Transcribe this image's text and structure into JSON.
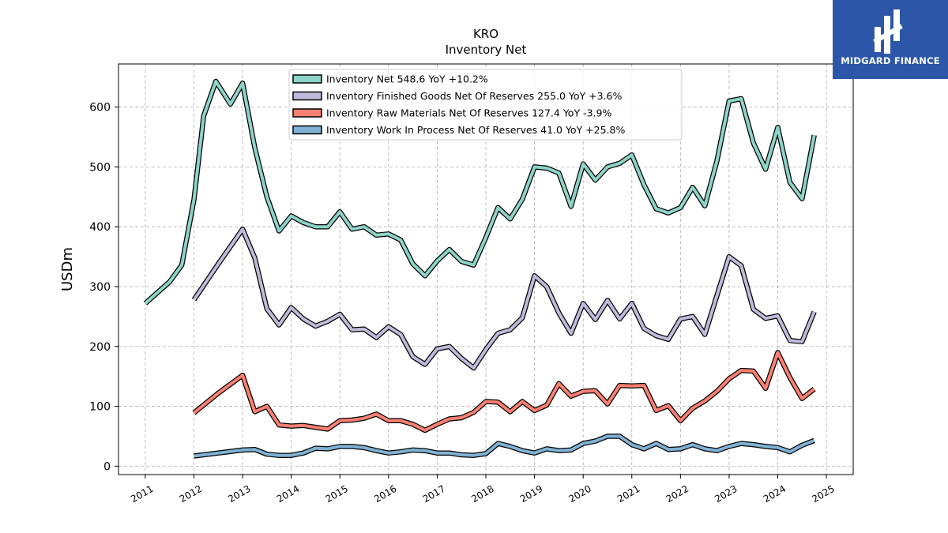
{
  "brand": {
    "name": "MIDGARD FINANCE",
    "logo_icon": "midgard-logo-icon",
    "background": "#2c57a8"
  },
  "chart_data": {
    "type": "line",
    "title": "KRO",
    "subtitle": "Inventory Net",
    "xlabel": "",
    "ylabel": "USDm",
    "xlim": [
      2010.45,
      2025.55
    ],
    "ylim": [
      -14,
      672
    ],
    "grid": true,
    "legend_position": "top-center",
    "x_ticks": [
      "2011",
      "2012",
      "2013",
      "2014",
      "2015",
      "2016",
      "2017",
      "2018",
      "2019",
      "2020",
      "2021",
      "2022",
      "2023",
      "2024",
      "2025"
    ],
    "y_ticks": [
      "0",
      "100",
      "200",
      "300",
      "400",
      "500",
      "600"
    ],
    "series": [
      {
        "name": "Inventory Net",
        "legend_label": "Inventory Net  548.6 YoY +10.2%",
        "color": "#8dd3c7",
        "points": [
          [
            2011.0,
            272
          ],
          [
            2011.5,
            308
          ],
          [
            2011.75,
            336
          ],
          [
            2012.0,
            445
          ],
          [
            2012.2,
            585
          ],
          [
            2012.45,
            643
          ],
          [
            2012.75,
            605
          ],
          [
            2013.0,
            640
          ],
          [
            2013.25,
            532
          ],
          [
            2013.5,
            450
          ],
          [
            2013.75,
            393
          ],
          [
            2014.0,
            418
          ],
          [
            2014.25,
            407
          ],
          [
            2014.5,
            400
          ],
          [
            2014.75,
            400
          ],
          [
            2015.0,
            425
          ],
          [
            2015.25,
            396
          ],
          [
            2015.5,
            400
          ],
          [
            2015.75,
            386
          ],
          [
            2016.0,
            388
          ],
          [
            2016.25,
            378
          ],
          [
            2016.5,
            338
          ],
          [
            2016.75,
            318
          ],
          [
            2017.0,
            343
          ],
          [
            2017.25,
            362
          ],
          [
            2017.5,
            342
          ],
          [
            2017.75,
            336
          ],
          [
            2018.0,
            382
          ],
          [
            2018.25,
            432
          ],
          [
            2018.5,
            413
          ],
          [
            2018.75,
            446
          ],
          [
            2019.0,
            500
          ],
          [
            2019.25,
            498
          ],
          [
            2019.5,
            490
          ],
          [
            2019.75,
            434
          ],
          [
            2020.0,
            505
          ],
          [
            2020.25,
            478
          ],
          [
            2020.5,
            500
          ],
          [
            2020.75,
            506
          ],
          [
            2021.0,
            520
          ],
          [
            2021.25,
            470
          ],
          [
            2021.5,
            430
          ],
          [
            2021.75,
            423
          ],
          [
            2022.0,
            432
          ],
          [
            2022.25,
            466
          ],
          [
            2022.5,
            435
          ],
          [
            2022.75,
            510
          ],
          [
            2023.0,
            610
          ],
          [
            2023.25,
            614
          ],
          [
            2023.5,
            540
          ],
          [
            2023.75,
            496
          ],
          [
            2024.0,
            566
          ],
          [
            2024.25,
            474
          ],
          [
            2024.5,
            447
          ],
          [
            2024.75,
            553
          ]
        ]
      },
      {
        "name": "Inventory Finished Goods Net Of Reserves",
        "legend_label": "Inventory Finished Goods Net Of Reserves  255.0 YoY +3.6%",
        "color": "#bebada",
        "points": [
          [
            2012.0,
            278
          ],
          [
            2012.5,
            338
          ],
          [
            2013.0,
            396
          ],
          [
            2013.25,
            348
          ],
          [
            2013.5,
            263
          ],
          [
            2013.75,
            236
          ],
          [
            2014.0,
            265
          ],
          [
            2014.25,
            246
          ],
          [
            2014.5,
            234
          ],
          [
            2014.75,
            242
          ],
          [
            2015.0,
            254
          ],
          [
            2015.25,
            228
          ],
          [
            2015.5,
            229
          ],
          [
            2015.75,
            215
          ],
          [
            2016.0,
            233
          ],
          [
            2016.25,
            220
          ],
          [
            2016.5,
            183
          ],
          [
            2016.75,
            170
          ],
          [
            2017.0,
            196
          ],
          [
            2017.25,
            200
          ],
          [
            2017.5,
            180
          ],
          [
            2017.75,
            164
          ],
          [
            2018.0,
            195
          ],
          [
            2018.25,
            222
          ],
          [
            2018.5,
            228
          ],
          [
            2018.75,
            248
          ],
          [
            2019.0,
            318
          ],
          [
            2019.25,
            300
          ],
          [
            2019.5,
            256
          ],
          [
            2019.75,
            222
          ],
          [
            2020.0,
            272
          ],
          [
            2020.25,
            245
          ],
          [
            2020.5,
            277
          ],
          [
            2020.75,
            246
          ],
          [
            2021.0,
            272
          ],
          [
            2021.25,
            230
          ],
          [
            2021.5,
            218
          ],
          [
            2021.75,
            212
          ],
          [
            2022.0,
            246
          ],
          [
            2022.25,
            250
          ],
          [
            2022.5,
            220
          ],
          [
            2022.75,
            285
          ],
          [
            2023.0,
            350
          ],
          [
            2023.25,
            335
          ],
          [
            2023.5,
            262
          ],
          [
            2023.75,
            247
          ],
          [
            2024.0,
            251
          ],
          [
            2024.25,
            210
          ],
          [
            2024.5,
            208
          ],
          [
            2024.75,
            258
          ]
        ]
      },
      {
        "name": "Inventory Raw Materials Net Of Reserves",
        "legend_label": "Inventory Raw Materials Net Of Reserves  127.4 YoY -3.9%",
        "color": "#fb8072",
        "points": [
          [
            2012.0,
            89
          ],
          [
            2012.5,
            122
          ],
          [
            2013.0,
            152
          ],
          [
            2013.25,
            91
          ],
          [
            2013.5,
            100
          ],
          [
            2013.75,
            69
          ],
          [
            2014.0,
            67
          ],
          [
            2014.25,
            68
          ],
          [
            2014.5,
            65
          ],
          [
            2014.75,
            62
          ],
          [
            2015.0,
            76
          ],
          [
            2015.25,
            77
          ],
          [
            2015.5,
            80
          ],
          [
            2015.75,
            87
          ],
          [
            2016.0,
            76
          ],
          [
            2016.25,
            76
          ],
          [
            2016.5,
            70
          ],
          [
            2016.75,
            60
          ],
          [
            2017.0,
            70
          ],
          [
            2017.25,
            79
          ],
          [
            2017.5,
            81
          ],
          [
            2017.75,
            90
          ],
          [
            2018.0,
            108
          ],
          [
            2018.25,
            107
          ],
          [
            2018.5,
            91
          ],
          [
            2018.75,
            108
          ],
          [
            2019.0,
            93
          ],
          [
            2019.25,
            102
          ],
          [
            2019.5,
            138
          ],
          [
            2019.75,
            117
          ],
          [
            2020.0,
            125
          ],
          [
            2020.25,
            126
          ],
          [
            2020.5,
            104
          ],
          [
            2020.75,
            135
          ],
          [
            2021.0,
            134
          ],
          [
            2021.25,
            135
          ],
          [
            2021.5,
            93
          ],
          [
            2021.75,
            101
          ],
          [
            2022.0,
            76
          ],
          [
            2022.25,
            97
          ],
          [
            2022.5,
            109
          ],
          [
            2022.75,
            125
          ],
          [
            2023.0,
            146
          ],
          [
            2023.25,
            160
          ],
          [
            2023.5,
            159
          ],
          [
            2023.75,
            130
          ],
          [
            2024.0,
            190
          ],
          [
            2024.25,
            148
          ],
          [
            2024.5,
            113
          ],
          [
            2024.75,
            129
          ]
        ]
      },
      {
        "name": "Inventory Work In Process Net Of Reserves",
        "legend_label": "Inventory Work In Process Net Of Reserves  41.0 YoY +25.8%",
        "color": "#80b1d3",
        "points": [
          [
            2012.0,
            17
          ],
          [
            2012.5,
            22
          ],
          [
            2013.0,
            27
          ],
          [
            2013.25,
            28
          ],
          [
            2013.5,
            20
          ],
          [
            2013.75,
            18
          ],
          [
            2014.0,
            18
          ],
          [
            2014.25,
            22
          ],
          [
            2014.5,
            30
          ],
          [
            2014.75,
            29
          ],
          [
            2015.0,
            33
          ],
          [
            2015.25,
            33
          ],
          [
            2015.5,
            31
          ],
          [
            2015.75,
            26
          ],
          [
            2016.0,
            22
          ],
          [
            2016.25,
            24
          ],
          [
            2016.5,
            27
          ],
          [
            2016.75,
            26
          ],
          [
            2017.0,
            22
          ],
          [
            2017.25,
            22
          ],
          [
            2017.5,
            19
          ],
          [
            2017.75,
            18
          ],
          [
            2018.0,
            21
          ],
          [
            2018.25,
            38
          ],
          [
            2018.5,
            33
          ],
          [
            2018.75,
            26
          ],
          [
            2019.0,
            22
          ],
          [
            2019.25,
            29
          ],
          [
            2019.5,
            26
          ],
          [
            2019.75,
            27
          ],
          [
            2020.0,
            38
          ],
          [
            2020.25,
            42
          ],
          [
            2020.5,
            50
          ],
          [
            2020.75,
            50
          ],
          [
            2021.0,
            36
          ],
          [
            2021.25,
            29
          ],
          [
            2021.5,
            38
          ],
          [
            2021.75,
            28
          ],
          [
            2022.0,
            29
          ],
          [
            2022.25,
            36
          ],
          [
            2022.5,
            29
          ],
          [
            2022.75,
            26
          ],
          [
            2023.0,
            33
          ],
          [
            2023.25,
            38
          ],
          [
            2023.5,
            36
          ],
          [
            2023.75,
            33
          ],
          [
            2024.0,
            31
          ],
          [
            2024.25,
            24
          ],
          [
            2024.5,
            35
          ],
          [
            2024.75,
            43
          ]
        ]
      }
    ]
  }
}
